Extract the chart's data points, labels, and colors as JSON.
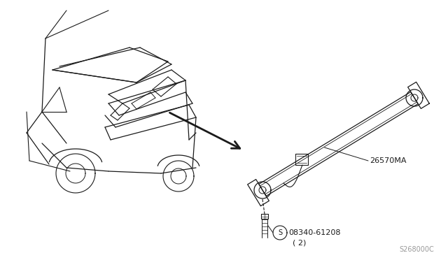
{
  "bg_color": "#ffffff",
  "line_color": "#1a1a1a",
  "fig_width": 6.4,
  "fig_height": 3.72,
  "dpi": 100,
  "part_label_1": "26570MA",
  "part_label_2": "08340-61208",
  "part_label_2b": "( 2)",
  "diagram_code": "S268000C"
}
